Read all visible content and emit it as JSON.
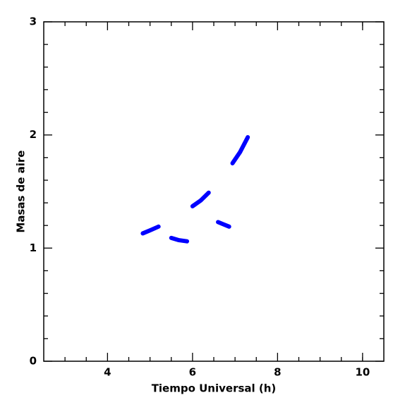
{
  "chart_data": {
    "type": "line",
    "xlabel": "Tiempo Universal (h)",
    "ylabel": "Masas de aire",
    "xlim": [
      2.5,
      10.5
    ],
    "xticks": [
      4,
      6,
      8,
      10
    ],
    "xminorticks": [
      3,
      3.5,
      4.5,
      5,
      5.5,
      6.5,
      7,
      7.5,
      8.5,
      9,
      9.5,
      10
    ],
    "ylim": [
      0,
      3
    ],
    "yticks": [
      0,
      1,
      2,
      3
    ],
    "yminorticks": [
      0.2,
      0.4,
      0.6,
      0.8,
      1.2,
      1.4,
      1.6,
      1.8,
      2.2,
      2.4,
      2.6,
      2.8
    ],
    "series": [
      {
        "color": "#0000ff",
        "x": [
          4.83,
          5.02,
          5.2
        ],
        "values": [
          1.13,
          1.16,
          1.19
        ]
      },
      {
        "color": "#0000ff",
        "x": [
          5.5,
          5.68,
          5.87
        ],
        "values": [
          1.09,
          1.07,
          1.06
        ]
      },
      {
        "color": "#0000ff",
        "x": [
          6.0,
          6.19,
          6.38
        ],
        "values": [
          1.37,
          1.42,
          1.49
        ]
      },
      {
        "color": "#0000ff",
        "x": [
          6.6,
          6.73,
          6.86
        ],
        "values": [
          1.23,
          1.21,
          1.19
        ]
      },
      {
        "color": "#0000ff",
        "x": [
          6.94,
          7.12,
          7.3
        ],
        "values": [
          1.75,
          1.85,
          1.98
        ]
      }
    ]
  }
}
